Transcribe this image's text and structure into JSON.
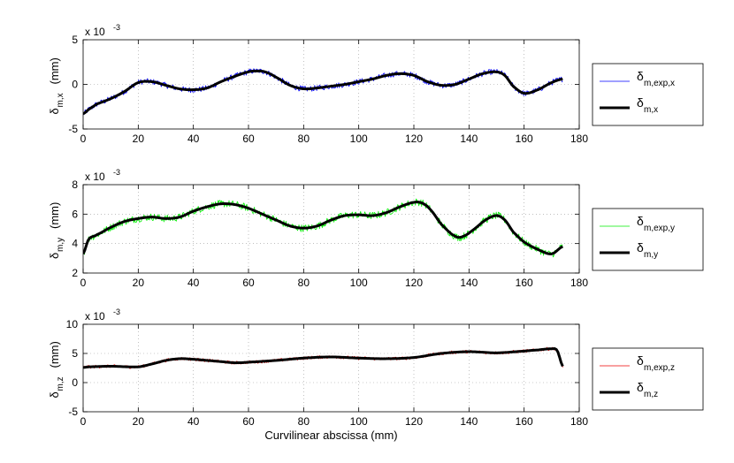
{
  "figure": {
    "xlabel": "Curvilinear abscissa (mm)"
  },
  "chart_data": [
    {
      "type": "line",
      "name": "x",
      "ylabel": "δm,x (mm)",
      "ylabel_main": "δ",
      "ylabel_sub": "m,x",
      "ylabel_unit": "(mm)",
      "multiplier_base": "x 10",
      "multiplier_exp": "-3",
      "xlim": [
        0,
        180
      ],
      "ylim": [
        -5,
        5
      ],
      "xticks": [
        0,
        20,
        40,
        60,
        80,
        100,
        120,
        140,
        160,
        180
      ],
      "yticks": [
        -5,
        0,
        5
      ],
      "grid": true,
      "legend_position": "outside-right",
      "noise": 0.32,
      "series": [
        {
          "name": "δm,exp,x",
          "legend_main": "δ",
          "legend_sub": "m,exp,x",
          "color": "#0000ff",
          "width": 0.8,
          "noisy": true
        },
        {
          "name": "δm,x",
          "legend_main": "δ",
          "legend_sub": "m,x",
          "color": "#000000",
          "width": 3,
          "noisy": false
        }
      ],
      "x": [
        0,
        2,
        5,
        10,
        15,
        20,
        25,
        30,
        35,
        40,
        45,
        50,
        55,
        60,
        63,
        66,
        70,
        75,
        80,
        85,
        90,
        95,
        100,
        105,
        110,
        115,
        120,
        125,
        130,
        135,
        140,
        145,
        150,
        153,
        156,
        160,
        165,
        170,
        174
      ],
      "values": [
        -3.3,
        -2.8,
        -2.2,
        -1.6,
        -0.8,
        0.2,
        0.3,
        -0.1,
        -0.5,
        -0.6,
        -0.4,
        0.3,
        0.9,
        1.4,
        1.5,
        1.4,
        0.8,
        -0.1,
        -0.5,
        -0.4,
        -0.2,
        0.0,
        0.3,
        0.6,
        1.0,
        1.2,
        1.0,
        0.3,
        -0.1,
        0.0,
        0.6,
        1.2,
        1.4,
        1.0,
        -0.2,
        -1.0,
        -0.6,
        0.2,
        0.6
      ]
    },
    {
      "type": "line",
      "name": "y",
      "ylabel": "δm,y (mm)",
      "ylabel_main": "δ",
      "ylabel_sub": "m,y",
      "ylabel_unit": "(mm)",
      "multiplier_base": "x 10",
      "multiplier_exp": "-3",
      "xlim": [
        0,
        180
      ],
      "ylim": [
        2,
        8
      ],
      "xticks": [
        0,
        20,
        40,
        60,
        80,
        100,
        120,
        140,
        160,
        180
      ],
      "yticks": [
        2,
        4,
        6,
        8
      ],
      "grid": true,
      "legend_position": "outside-right",
      "noise": 0.25,
      "series": [
        {
          "name": "δm,exp,y",
          "legend_main": "δ",
          "legend_sub": "m,exp,y",
          "color": "#00ee00",
          "width": 0.8,
          "noisy": true
        },
        {
          "name": "δm,y",
          "legend_main": "δ",
          "legend_sub": "m,y",
          "color": "#000000",
          "width": 3,
          "noisy": false
        }
      ],
      "x": [
        0,
        2,
        5,
        10,
        15,
        20,
        25,
        30,
        35,
        40,
        45,
        50,
        55,
        60,
        65,
        70,
        75,
        80,
        85,
        90,
        95,
        100,
        105,
        110,
        115,
        120,
        123,
        126,
        130,
        135,
        138,
        142,
        146,
        150,
        153,
        156,
        160,
        165,
        170,
        174
      ],
      "values": [
        3.3,
        4.3,
        4.6,
        5.1,
        5.5,
        5.7,
        5.8,
        5.7,
        5.8,
        6.2,
        6.5,
        6.7,
        6.65,
        6.4,
        6.0,
        5.6,
        5.2,
        5.05,
        5.2,
        5.6,
        5.9,
        5.95,
        5.9,
        6.1,
        6.5,
        6.8,
        6.75,
        6.3,
        5.3,
        4.5,
        4.5,
        5.0,
        5.6,
        5.9,
        5.6,
        4.8,
        4.1,
        3.6,
        3.3,
        3.8
      ]
    },
    {
      "type": "line",
      "name": "z",
      "ylabel": "δm,z (mm)",
      "ylabel_main": "δ",
      "ylabel_sub": "m,z",
      "ylabel_unit": "(mm)",
      "multiplier_base": "x 10",
      "multiplier_exp": "-3",
      "xlim": [
        0,
        180
      ],
      "ylim": [
        -5,
        10
      ],
      "xticks": [
        0,
        20,
        40,
        60,
        80,
        100,
        120,
        140,
        160,
        180
      ],
      "yticks": [
        -5,
        0,
        5,
        10
      ],
      "grid": true,
      "legend_position": "outside-right",
      "noise": 0.28,
      "series": [
        {
          "name": "δm,exp,z",
          "legend_main": "δ",
          "legend_sub": "m,exp,z",
          "color": "#ee0000",
          "width": 0.8,
          "noisy": true
        },
        {
          "name": "δm,z",
          "legend_main": "δ",
          "legend_sub": "m,z",
          "color": "#000000",
          "width": 3,
          "noisy": false
        }
      ],
      "x": [
        0,
        2,
        10,
        20,
        25,
        30,
        35,
        40,
        45,
        50,
        55,
        60,
        70,
        80,
        90,
        100,
        110,
        120,
        130,
        140,
        150,
        160,
        165,
        170,
        172,
        174
      ],
      "values": [
        2.6,
        2.7,
        2.8,
        2.7,
        3.2,
        3.8,
        4.1,
        4.0,
        3.8,
        3.6,
        3.4,
        3.5,
        3.8,
        4.2,
        4.4,
        4.2,
        4.1,
        4.3,
        5.0,
        5.3,
        5.1,
        5.4,
        5.6,
        5.8,
        5.5,
        2.8
      ]
    }
  ]
}
